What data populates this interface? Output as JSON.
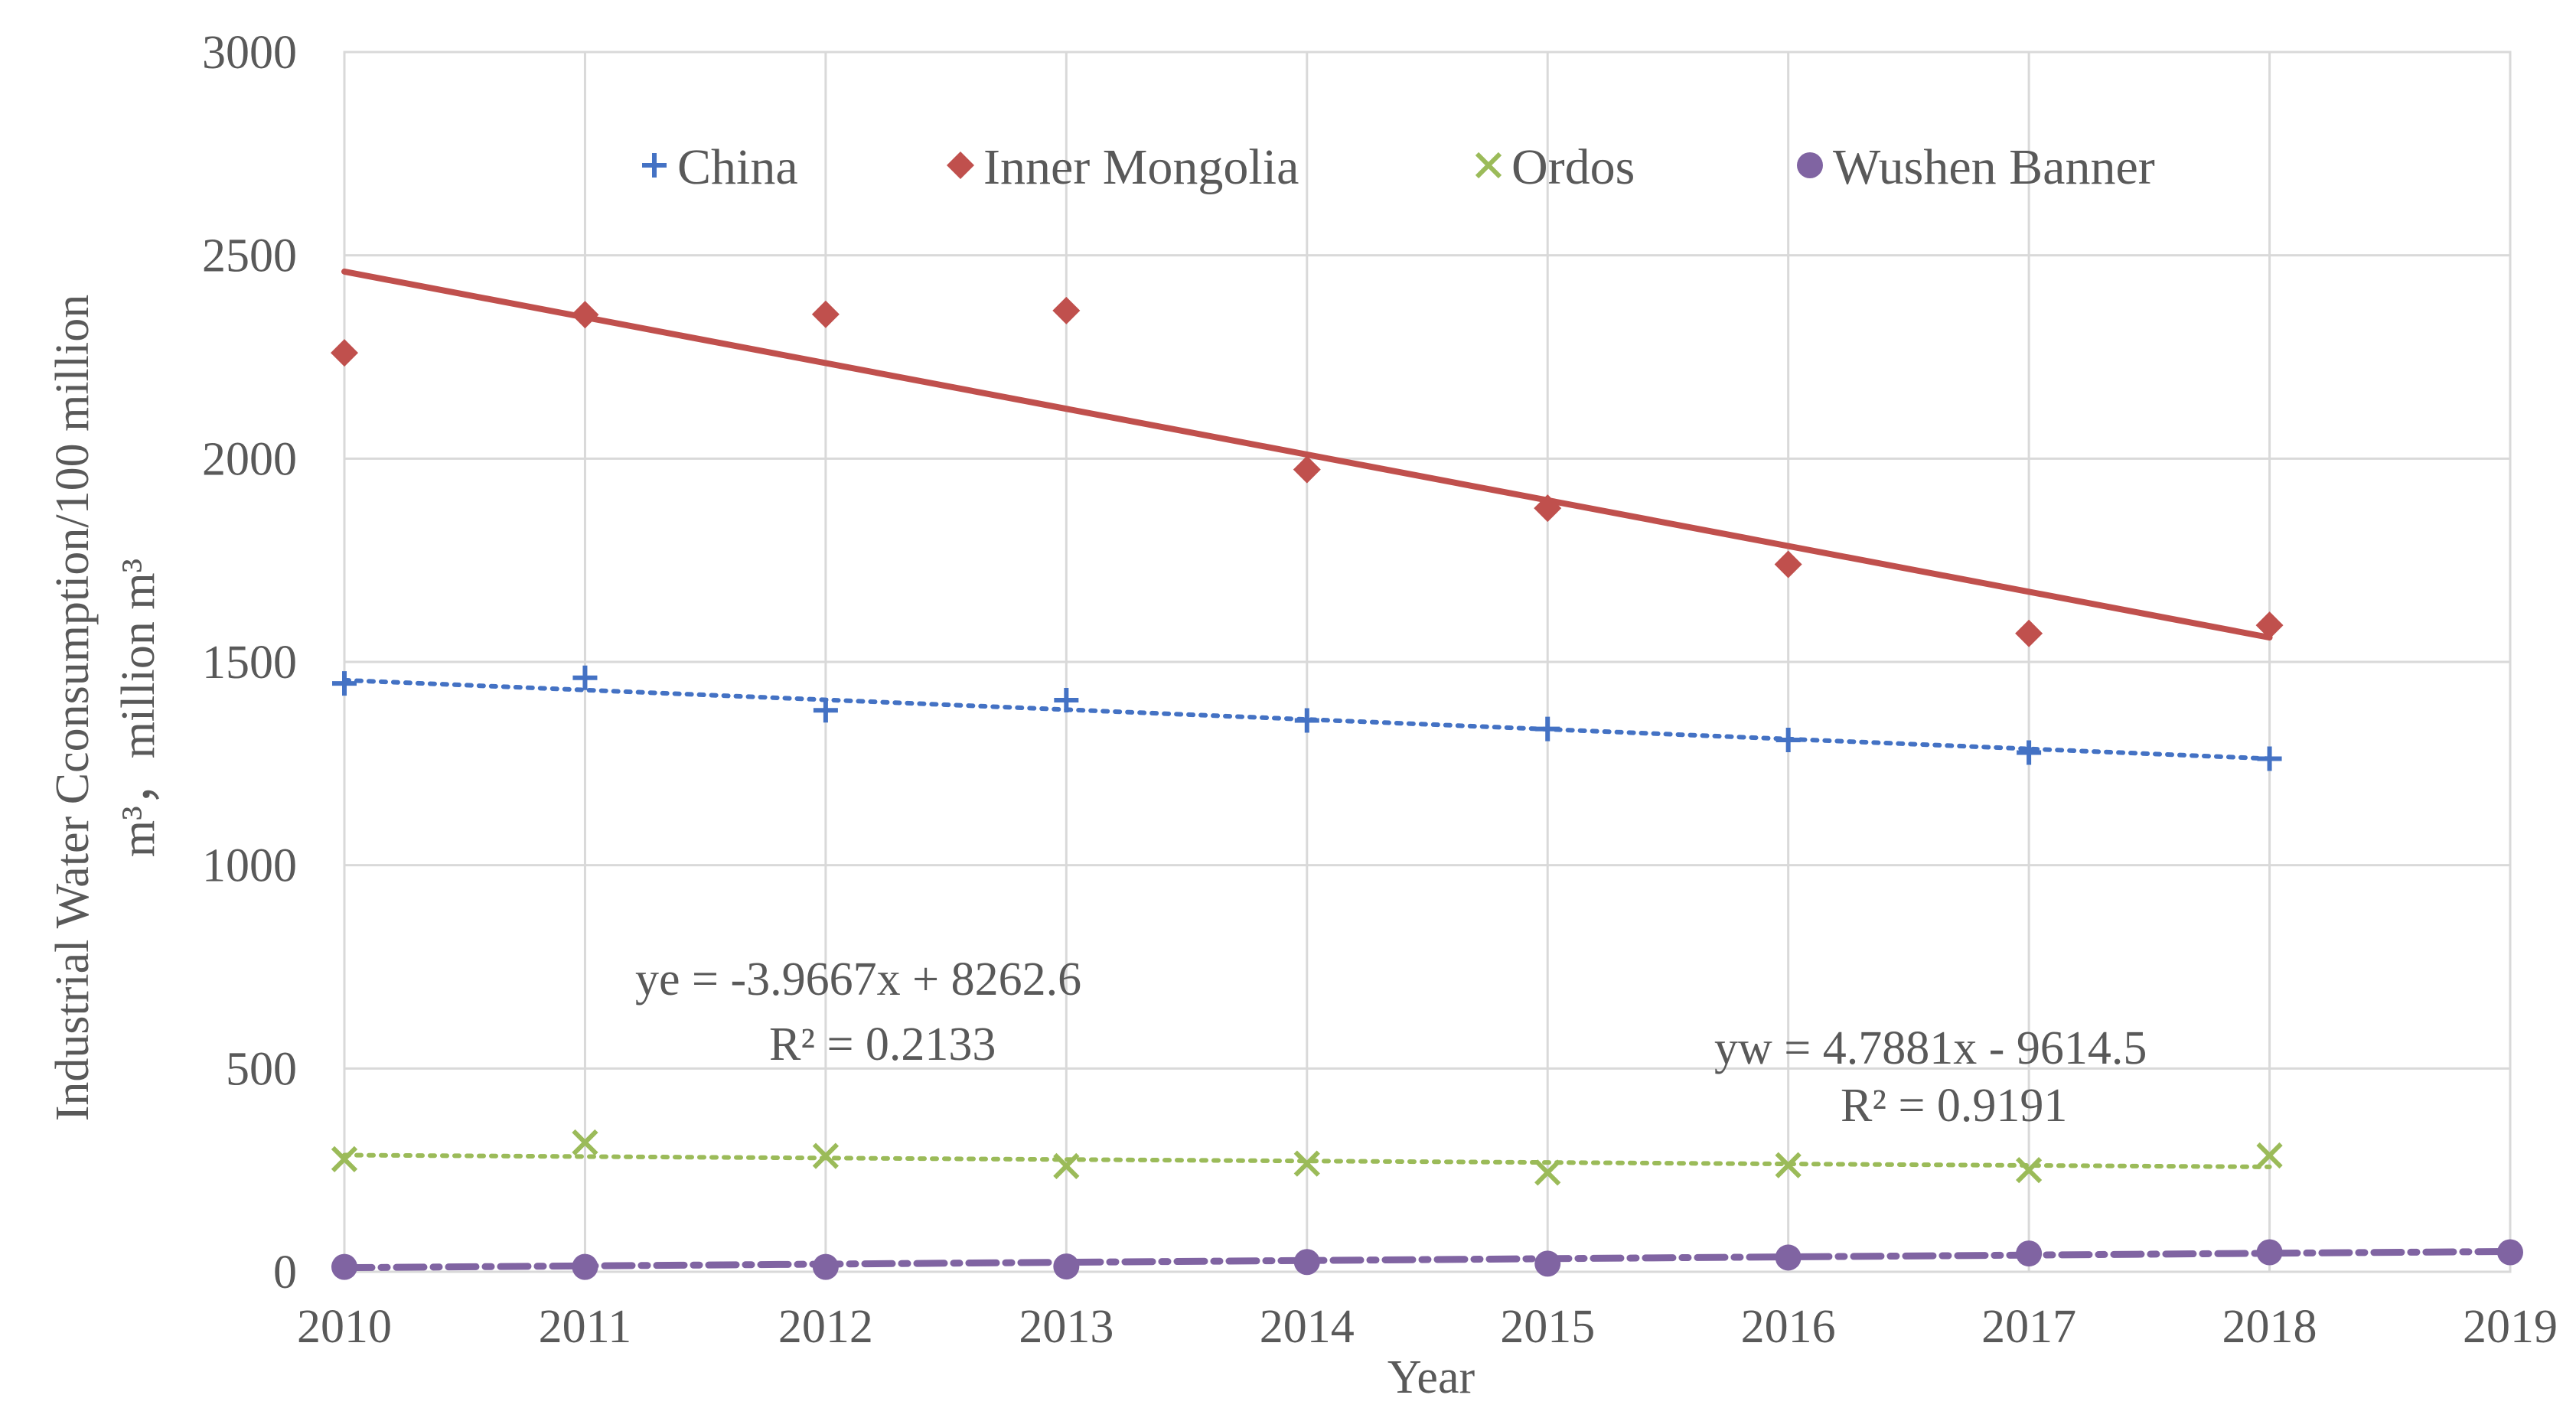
{
  "chart_data": {
    "type": "scatter",
    "title": "",
    "xlabel": "Year",
    "ylabel": "Industrial Water Cconsumption/100 million m³，million m³",
    "ylabel_line1": "Industrial Water Cconsumption/100 million",
    "ylabel_line2": "m³，million m³",
    "xlim": [
      2010,
      2019
    ],
    "ylim": [
      0,
      3000
    ],
    "x_ticks": [
      2010,
      2011,
      2012,
      2013,
      2014,
      2015,
      2016,
      2017,
      2018,
      2019
    ],
    "y_ticks": [
      0,
      500,
      1000,
      1500,
      2000,
      2500,
      3000
    ],
    "grid": true,
    "legend_position": "top",
    "series": [
      {
        "name": "China",
        "marker": "plus",
        "color": "#4472c4",
        "x": [
          2010,
          2011,
          2012,
          2013,
          2014,
          2015,
          2016,
          2017,
          2018
        ],
        "values": [
          1447,
          1461,
          1381,
          1406,
          1356,
          1335,
          1308,
          1277,
          1262
        ],
        "trendline": {
          "style": "dotted",
          "from": [
            2010,
            1455
          ],
          "to": [
            2018,
            1262
          ]
        }
      },
      {
        "name": "Inner Mongolia",
        "marker": "diamond",
        "color": "#c0504d",
        "x": [
          2010,
          2011,
          2012,
          2013,
          2014,
          2015,
          2016,
          2017,
          2018
        ],
        "values": [
          2260,
          2354,
          2355,
          2364,
          1973,
          1878,
          1740,
          1570,
          1590
        ],
        "trendline": {
          "style": "solid",
          "from": [
            2010,
            2460
          ],
          "to": [
            2018,
            1560
          ]
        }
      },
      {
        "name": "Ordos",
        "marker": "cross",
        "color": "#9bbb59",
        "x": [
          2010,
          2011,
          2012,
          2013,
          2014,
          2015,
          2016,
          2017,
          2018
        ],
        "values": [
          277,
          318,
          285,
          260,
          266,
          244,
          262,
          250,
          286
        ],
        "trendline": {
          "style": "dotted",
          "from": [
            2010,
            287
          ],
          "to": [
            2018,
            258
          ]
        }
      },
      {
        "name": "Wushen Banner",
        "marker": "circle",
        "color": "#8064a2",
        "x": [
          2010,
          2011,
          2012,
          2013,
          2014,
          2015,
          2016,
          2017,
          2018,
          2019
        ],
        "values": [
          12,
          12,
          12,
          13,
          24,
          20,
          35,
          45,
          48,
          48
        ],
        "trendline": {
          "style": "dashdot",
          "from": [
            2010,
            10
          ],
          "to": [
            2019,
            50
          ]
        }
      }
    ],
    "annotations": [
      {
        "id": "ye-eq",
        "text": "ye = -3.9667x + 8262.6"
      },
      {
        "id": "ye-r2",
        "text": "R² = 0.2133"
      },
      {
        "id": "yw-eq",
        "text": "yw = 4.7881x - 9614.5"
      },
      {
        "id": "yw-r2",
        "text": "R² = 0.9191"
      }
    ]
  }
}
